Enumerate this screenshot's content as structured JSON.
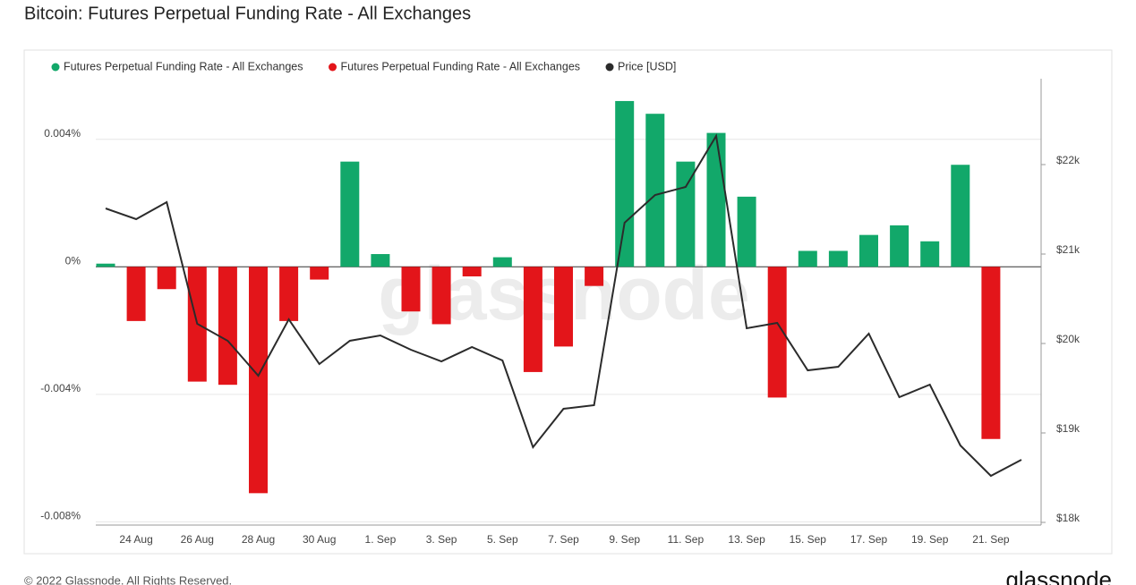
{
  "chart_data": {
    "type": "bar",
    "title": "Bitcoin: Futures Perpetual Funding Rate - All Exchanges",
    "watermark": "glassnode",
    "footer": "© 2022 Glassnode. All Rights Reserved.",
    "logo": "glassnode",
    "categories": [
      null,
      "24 Aug",
      null,
      "26 Aug",
      null,
      "28 Aug",
      null,
      "30 Aug",
      null,
      "1. Sep",
      null,
      "3. Sep",
      null,
      "5. Sep",
      null,
      "7. Sep",
      null,
      "9. Sep",
      null,
      "11. Sep",
      null,
      "13. Sep",
      null,
      "15. Sep",
      null,
      "17. Sep",
      null,
      "19. Sep",
      null,
      "21. Sep",
      null
    ],
    "series": [
      {
        "name": "Futures Perpetual Funding Rate - All Exchanges",
        "color": "#12a86a",
        "values": [
          0.0001,
          null,
          null,
          null,
          null,
          null,
          null,
          null,
          0.0033,
          0.0004,
          null,
          null,
          null,
          0.0003,
          null,
          null,
          null,
          0.0052,
          0.0048,
          0.0033,
          0.0042,
          0.0022,
          null,
          0.0005,
          0.0005,
          0.001,
          0.0013,
          0.0008,
          0.0032,
          null,
          null
        ]
      },
      {
        "name": "Futures Perpetual Funding Rate - All Exchanges",
        "color": "#e3151a",
        "values": [
          null,
          -0.0017,
          -0.0007,
          -0.0036,
          -0.0037,
          -0.0071,
          -0.0017,
          -0.0004,
          null,
          null,
          -0.0014,
          -0.0018,
          -0.0003,
          null,
          -0.0033,
          -0.0025,
          -0.0006,
          null,
          null,
          null,
          null,
          null,
          -0.0041,
          null,
          null,
          null,
          null,
          null,
          null,
          -0.0054,
          null
        ]
      },
      {
        "name": "Price [USD]",
        "color": "#2b2b2b",
        "type": "line",
        "axis": "y2",
        "values": [
          21510,
          21390,
          21580,
          20220,
          20030,
          19640,
          20270,
          19770,
          20030,
          20090,
          19930,
          19800,
          19960,
          19810,
          18840,
          19270,
          19310,
          21350,
          21660,
          21750,
          22320,
          20170,
          20230,
          19700,
          19740,
          20110,
          19400,
          19540,
          18860,
          18520,
          18700
        ]
      }
    ],
    "ylim": [
      -0.0081,
      0.0059
    ],
    "yticks": [
      {
        "value": -0.008,
        "label": "-0.008%"
      },
      {
        "value": -0.004,
        "label": "-0.004%"
      },
      {
        "value": 0,
        "label": "0%"
      },
      {
        "value": 0.004,
        "label": "0.004%"
      }
    ],
    "y2lim": [
      17970,
      22960
    ],
    "y2ticks": [
      {
        "value": 18000,
        "label": "$18k"
      },
      {
        "value": 19000,
        "label": "$19k"
      },
      {
        "value": 20000,
        "label": "$20k"
      },
      {
        "value": 21000,
        "label": "$21k"
      },
      {
        "value": 22000,
        "label": "$22k"
      }
    ],
    "grid": true,
    "legend": "top"
  }
}
